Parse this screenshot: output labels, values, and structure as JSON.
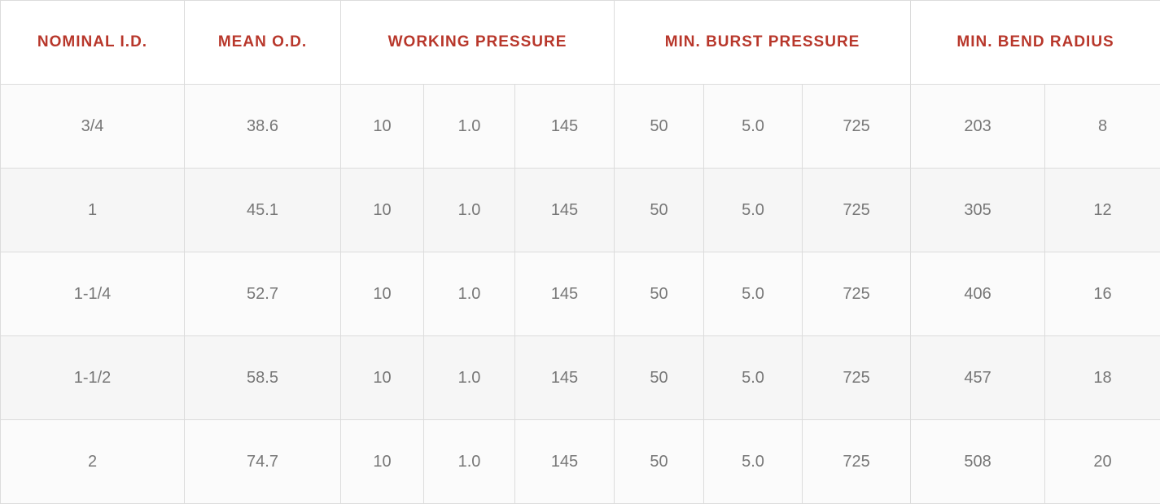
{
  "header": {
    "nominal_id": "NOMINAL I.D.",
    "mean_od": "MEAN O.D.",
    "working_pressure": "WORKING PRESSURE",
    "min_burst_pressure": "MIN. BURST PRESSURE",
    "min_bend_radius": "MIN. BEND RADIUS"
  },
  "rows": [
    {
      "nominal_id": "3/4",
      "mean_od": "38.6",
      "wp_1": "10",
      "wp_2": "1.0",
      "wp_3": "145",
      "bp_1": "50",
      "bp_2": "5.0",
      "bp_3": "725",
      "br_1": "203",
      "br_2": "8"
    },
    {
      "nominal_id": "1",
      "mean_od": "45.1",
      "wp_1": "10",
      "wp_2": "1.0",
      "wp_3": "145",
      "bp_1": "50",
      "bp_2": "5.0",
      "bp_3": "725",
      "br_1": "305",
      "br_2": "12"
    },
    {
      "nominal_id": "1-1/4",
      "mean_od": "52.7",
      "wp_1": "10",
      "wp_2": "1.0",
      "wp_3": "145",
      "bp_1": "50",
      "bp_2": "5.0",
      "bp_3": "725",
      "br_1": "406",
      "br_2": "16"
    },
    {
      "nominal_id": "1-1/2",
      "mean_od": "58.5",
      "wp_1": "10",
      "wp_2": "1.0",
      "wp_3": "145",
      "bp_1": "50",
      "bp_2": "5.0",
      "bp_3": "725",
      "br_1": "457",
      "br_2": "18"
    },
    {
      "nominal_id": "2",
      "mean_od": "74.7",
      "wp_1": "10",
      "wp_2": "1.0",
      "wp_3": "145",
      "bp_1": "50",
      "bp_2": "5.0",
      "bp_3": "725",
      "br_1": "508",
      "br_2": "20"
    }
  ],
  "colors": {
    "header_text": "#b8372b",
    "cell_text": "#777777",
    "border": "#dcdcdc",
    "row_light": "#fbfbfb",
    "row_dark": "#f6f6f6"
  }
}
